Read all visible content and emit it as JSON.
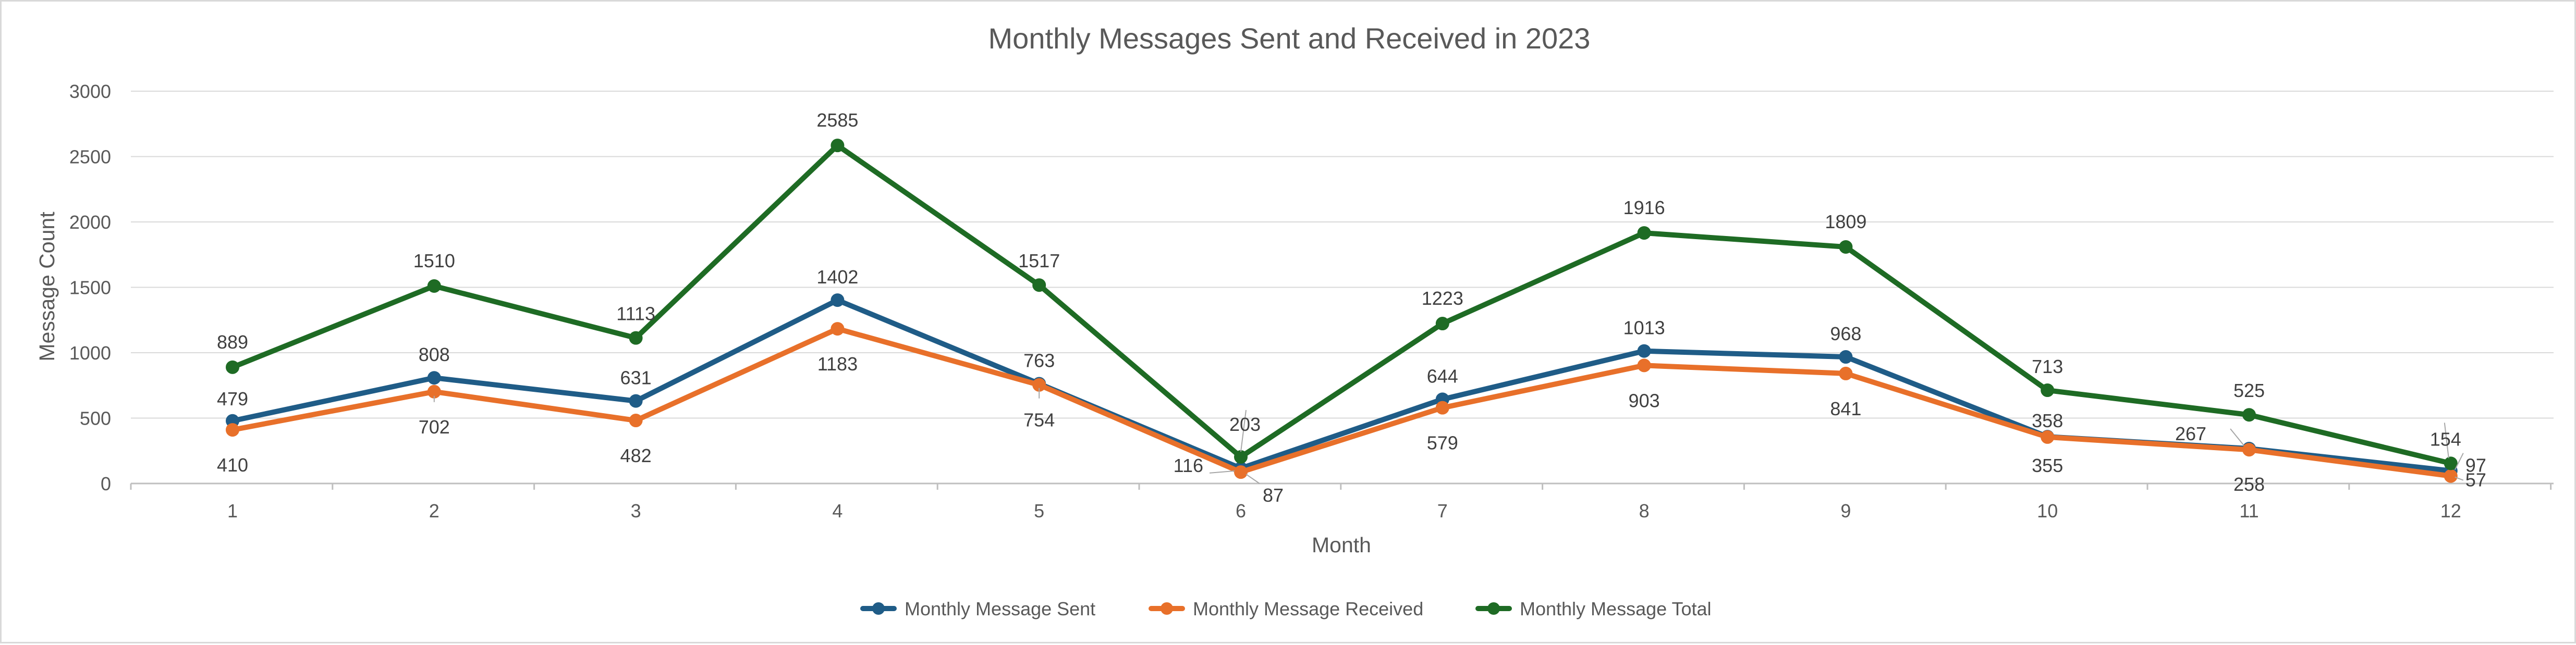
{
  "chart_data": {
    "type": "line",
    "title": "Monthly Messages Sent and Received in 2023",
    "xlabel": "Month",
    "ylabel": "Message Count",
    "categories": [
      "1",
      "2",
      "3",
      "4",
      "5",
      "6",
      "7",
      "8",
      "9",
      "10",
      "11",
      "12"
    ],
    "ylim": [
      0,
      3000
    ],
    "yticks": [
      0,
      500,
      1000,
      1500,
      2000,
      2500,
      3000
    ],
    "grid": true,
    "legend_position": "bottom",
    "series": [
      {
        "name": "Monthly Message Sent",
        "color": "#1f5c87",
        "values": [
          479,
          808,
          631,
          1402,
          763,
          116,
          644,
          1013,
          968,
          358,
          267,
          97
        ]
      },
      {
        "name": "Monthly Message Received",
        "color": "#e8702a",
        "values": [
          410,
          702,
          482,
          1183,
          754,
          87,
          579,
          903,
          841,
          355,
          258,
          57
        ]
      },
      {
        "name": "Monthly Message Total",
        "color": "#1e6b24",
        "values": [
          889,
          1510,
          1113,
          2585,
          1517,
          203,
          1223,
          1916,
          1809,
          713,
          525,
          154
        ]
      }
    ]
  }
}
